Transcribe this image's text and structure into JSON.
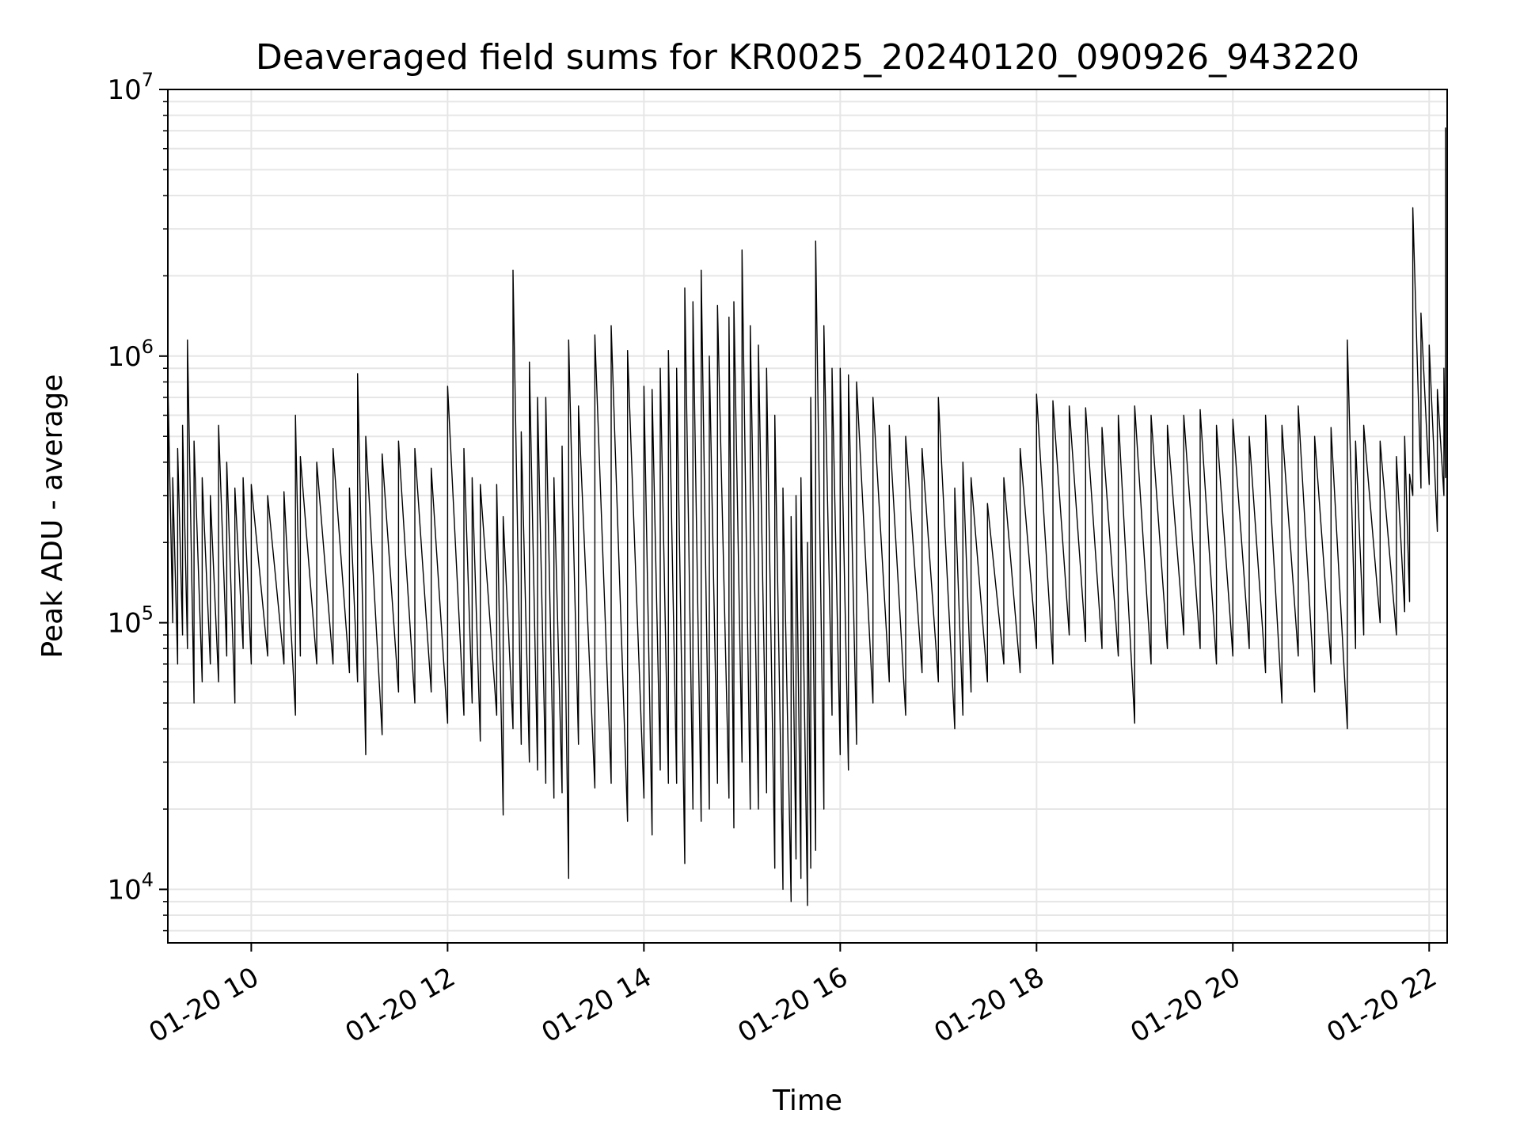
{
  "chart_data": {
    "type": "line",
    "title": "Deaveraged field sums for KR0025_20240120_090926_943220",
    "xlabel": "Time",
    "ylabel": "Peak ADU - average",
    "yscale": "log",
    "ylim": [
      6300,
      10000000
    ],
    "xlim": [
      "2024-01-20T09:09",
      "2024-01-20T22:11"
    ],
    "x_ticks": [
      {
        "label": "01-20 10",
        "value": "2024-01-20T10:00"
      },
      {
        "label": "01-20 12",
        "value": "2024-01-20T12:00"
      },
      {
        "label": "01-20 14",
        "value": "2024-01-20T14:00"
      },
      {
        "label": "01-20 16",
        "value": "2024-01-20T16:00"
      },
      {
        "label": "01-20 18",
        "value": "2024-01-20T18:00"
      },
      {
        "label": "01-20 20",
        "value": "2024-01-20T20:00"
      },
      {
        "label": "01-20 22",
        "value": "2024-01-20T22:00"
      }
    ],
    "y_ticks": [
      {
        "base": "10",
        "exp": "4",
        "value": 10000
      },
      {
        "base": "10",
        "exp": "5",
        "value": 100000
      },
      {
        "base": "10",
        "exp": "6",
        "value": 1000000
      },
      {
        "base": "10",
        "exp": "7",
        "value": 10000000
      }
    ],
    "grid": true,
    "line_color": "#000000",
    "grid_color": "#e6e6e6",
    "series": [
      {
        "x": [
          "2024-01-20T09:09",
          "2024-01-20T09:12",
          "2024-01-20T09:15",
          "2024-01-20T09:18",
          "2024-01-20T09:21",
          "2024-01-20T09:25",
          "2024-01-20T09:30",
          "2024-01-20T09:35",
          "2024-01-20T09:40",
          "2024-01-20T09:45",
          "2024-01-20T09:50",
          "2024-01-20T09:55",
          "2024-01-20T10:00",
          "2024-01-20T10:10",
          "2024-01-20T10:20",
          "2024-01-20T10:27",
          "2024-01-20T10:30",
          "2024-01-20T10:40",
          "2024-01-20T10:50",
          "2024-01-20T11:00",
          "2024-01-20T11:05",
          "2024-01-20T11:10",
          "2024-01-20T11:20",
          "2024-01-20T11:30",
          "2024-01-20T11:40",
          "2024-01-20T11:50",
          "2024-01-20T12:00",
          "2024-01-20T12:10",
          "2024-01-20T12:15",
          "2024-01-20T12:20",
          "2024-01-20T12:30",
          "2024-01-20T12:34",
          "2024-01-20T12:40",
          "2024-01-20T12:45",
          "2024-01-20T12:50",
          "2024-01-20T12:55",
          "2024-01-20T13:00",
          "2024-01-20T13:05",
          "2024-01-20T13:10",
          "2024-01-20T13:14",
          "2024-01-20T13:20",
          "2024-01-20T13:30",
          "2024-01-20T13:40",
          "2024-01-20T13:50",
          "2024-01-20T14:00",
          "2024-01-20T14:05",
          "2024-01-20T14:10",
          "2024-01-20T14:15",
          "2024-01-20T14:20",
          "2024-01-20T14:25",
          "2024-01-20T14:30",
          "2024-01-20T14:35",
          "2024-01-20T14:40",
          "2024-01-20T14:45",
          "2024-01-20T14:52",
          "2024-01-20T14:55",
          "2024-01-20T15:00",
          "2024-01-20T15:05",
          "2024-01-20T15:10",
          "2024-01-20T15:15",
          "2024-01-20T15:20",
          "2024-01-20T15:25",
          "2024-01-20T15:30",
          "2024-01-20T15:33",
          "2024-01-20T15:36",
          "2024-01-20T15:40",
          "2024-01-20T15:42",
          "2024-01-20T15:45",
          "2024-01-20T15:50",
          "2024-01-20T15:55",
          "2024-01-20T16:00",
          "2024-01-20T16:05",
          "2024-01-20T16:10",
          "2024-01-20T16:20",
          "2024-01-20T16:30",
          "2024-01-20T16:40",
          "2024-01-20T16:50",
          "2024-01-20T17:00",
          "2024-01-20T17:10",
          "2024-01-20T17:15",
          "2024-01-20T17:20",
          "2024-01-20T17:30",
          "2024-01-20T17:40",
          "2024-01-20T17:50",
          "2024-01-20T18:00",
          "2024-01-20T18:10",
          "2024-01-20T18:20",
          "2024-01-20T18:30",
          "2024-01-20T18:40",
          "2024-01-20T18:50",
          "2024-01-20T19:00",
          "2024-01-20T19:10",
          "2024-01-20T19:20",
          "2024-01-20T19:30",
          "2024-01-20T19:40",
          "2024-01-20T19:50",
          "2024-01-20T20:00",
          "2024-01-20T20:10",
          "2024-01-20T20:20",
          "2024-01-20T20:30",
          "2024-01-20T20:40",
          "2024-01-20T20:50",
          "2024-01-20T21:00",
          "2024-01-20T21:10",
          "2024-01-20T21:15",
          "2024-01-20T21:20",
          "2024-01-20T21:30",
          "2024-01-20T21:40",
          "2024-01-20T21:45",
          "2024-01-20T21:48",
          "2024-01-20T21:50",
          "2024-01-20T21:55",
          "2024-01-20T22:00",
          "2024-01-20T22:05",
          "2024-01-20T22:09",
          "2024-01-20T22:10"
        ],
        "low": [
          55000,
          100000,
          70000,
          90000,
          80000,
          50000,
          60000,
          70000,
          60000,
          75000,
          50000,
          80000,
          70000,
          75000,
          70000,
          45000,
          75000,
          70000,
          70000,
          65000,
          60000,
          32000,
          38000,
          55000,
          50000,
          55000,
          42000,
          45000,
          50000,
          36000,
          45000,
          19000,
          40000,
          35000,
          30000,
          28000,
          25000,
          22000,
          23000,
          11000,
          35000,
          24000,
          25000,
          18000,
          22000,
          16000,
          28000,
          25000,
          25000,
          12500,
          20000,
          18000,
          20000,
          25000,
          22000,
          17000,
          30000,
          20000,
          20000,
          23000,
          12000,
          10000,
          9000,
          13000,
          11000,
          8700,
          12000,
          14000,
          20000,
          45000,
          32000,
          28000,
          35000,
          50000,
          60000,
          45000,
          65000,
          60000,
          40000,
          45000,
          55000,
          60000,
          70000,
          65000,
          80000,
          70000,
          90000,
          85000,
          80000,
          75000,
          42000,
          70000,
          80000,
          90000,
          80000,
          70000,
          75000,
          80000,
          65000,
          50000,
          75000,
          55000,
          70000,
          40000,
          80000,
          90000,
          100000,
          90000,
          110000,
          120000,
          300000,
          320000,
          330000,
          220000,
          300000,
          350000
        ],
        "high": [
          800000,
          350000,
          450000,
          550000,
          1150000,
          480000,
          350000,
          300000,
          550000,
          400000,
          320000,
          350000,
          330000,
          300000,
          310000,
          600000,
          420000,
          400000,
          450000,
          320000,
          860000,
          500000,
          430000,
          480000,
          450000,
          380000,
          770000,
          450000,
          350000,
          330000,
          330000,
          250000,
          2100000,
          520000,
          950000,
          700000,
          700000,
          350000,
          460000,
          1150000,
          650000,
          1200000,
          1300000,
          1050000,
          770000,
          750000,
          900000,
          1050000,
          900000,
          1800000,
          1600000,
          2100000,
          1000000,
          1550000,
          1400000,
          1600000,
          2500000,
          1300000,
          1100000,
          900000,
          600000,
          320000,
          250000,
          300000,
          350000,
          200000,
          700000,
          2700000,
          1300000,
          900000,
          900000,
          850000,
          800000,
          700000,
          550000,
          500000,
          450000,
          700000,
          320000,
          400000,
          350000,
          280000,
          350000,
          450000,
          720000,
          680000,
          650000,
          640000,
          540000,
          600000,
          650000,
          600000,
          550000,
          600000,
          630000,
          550000,
          580000,
          500000,
          600000,
          550000,
          650000,
          500000,
          540000,
          1150000,
          480000,
          550000,
          480000,
          420000,
          500000,
          360000,
          3600000,
          1450000,
          1100000,
          750000,
          900000,
          7200000
        ]
      }
    ]
  }
}
